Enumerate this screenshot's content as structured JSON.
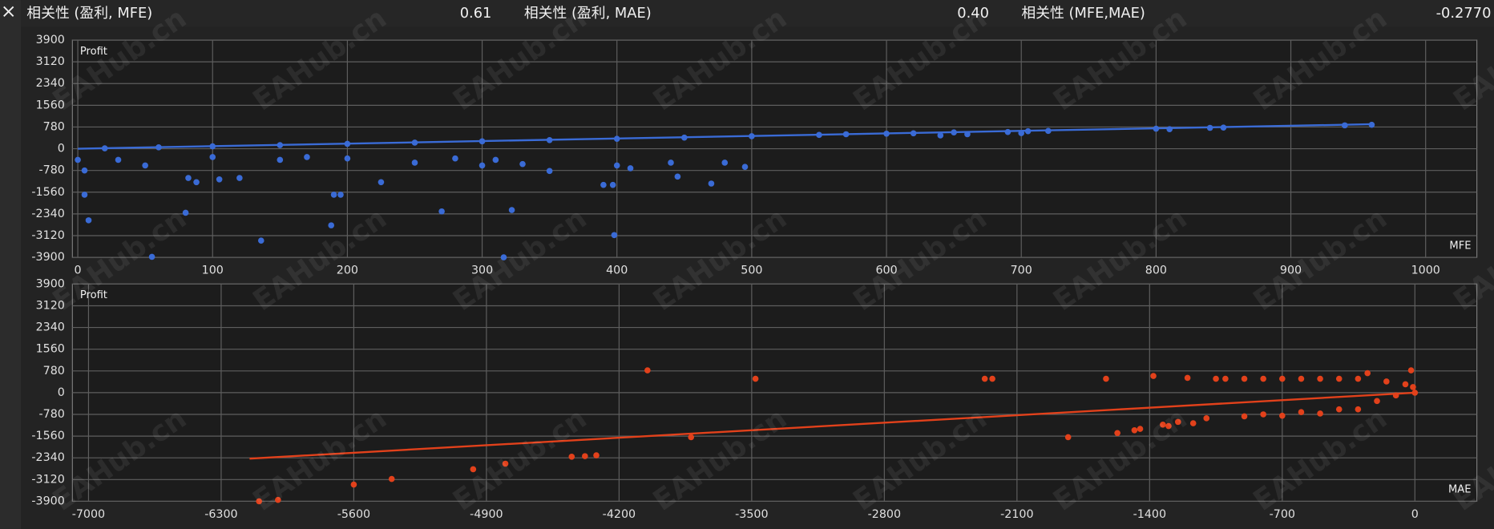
{
  "header": {
    "items": [
      {
        "label": "相关性 (盈利, MFE)",
        "value": 0.61
      },
      {
        "label": "相关性 (盈利, MAE)",
        "value": {
          "value": 0.4,
          "label": "0.40"
        }
      },
      {
        "label": "相关性 (MFE,MAE)",
        "value": {
          "value": -0.277,
          "label": "-0.2770"
        }
      }
    ]
  },
  "watermark": "EAHub.cn",
  "chart_data": [
    {
      "type": "scatter",
      "ylabel": "Profit",
      "xlabel": "MFE",
      "color": "#3a6bd6",
      "grid": true,
      "xlim": [
        -4,
        1038
      ],
      "ylim": [
        -3900,
        3900
      ],
      "xticks": [
        0,
        100,
        200,
        300,
        400,
        500,
        600,
        700,
        800,
        900,
        1000
      ],
      "yticks": [
        3900,
        3120,
        2340,
        1560,
        780,
        0,
        -780,
        -1560,
        -2340,
        -3120,
        -3900
      ],
      "x": [
        20,
        60,
        100,
        150,
        200,
        250,
        300,
        350,
        400,
        450,
        500,
        550,
        600,
        620,
        650,
        700,
        705,
        720,
        800,
        810,
        840,
        850,
        940,
        960,
        570,
        640,
        660,
        690,
        0,
        5,
        5,
        8,
        30,
        50,
        55,
        80,
        82,
        88,
        100,
        105,
        120,
        136,
        150,
        170,
        188,
        190,
        195,
        200,
        225,
        250,
        270,
        300,
        310,
        316,
        322,
        350,
        390,
        397,
        398,
        400,
        410,
        440,
        445,
        470,
        480,
        495,
        280,
        330
      ],
      "y": [
        15,
        50,
        85,
        130,
        175,
        220,
        265,
        310,
        355,
        400,
        450,
        495,
        540,
        555,
        585,
        560,
        630,
        640,
        720,
        700,
        750,
        760,
        840,
        860,
        520,
        480,
        520,
        600,
        -400,
        -780,
        -1650,
        -2570,
        -400,
        -600,
        -3880,
        -2300,
        -1050,
        -1200,
        -300,
        -1100,
        -1050,
        -3300,
        -400,
        -300,
        -2750,
        -1650,
        -1650,
        -350,
        -1200,
        -500,
        -2250,
        -600,
        -400,
        -3900,
        -2200,
        -800,
        -1300,
        -1300,
        -3100,
        -600,
        -700,
        -500,
        -1000,
        -1250,
        -500,
        -650,
        -350,
        -550
      ],
      "trend": {
        "x": [
          0,
          960
        ],
        "y": [
          0,
          880
        ]
      }
    },
    {
      "type": "scatter",
      "ylabel": "Profit",
      "xlabel": "MAE",
      "color": "#e2411b",
      "grid": true,
      "xlim": [
        -7085,
        327
      ],
      "ylim": [
        -3900,
        3900
      ],
      "xticks": [
        -7000,
        -6300,
        -5600,
        -4900,
        -4200,
        -3500,
        -2800,
        -2100,
        -1400,
        -700,
        0
      ],
      "yticks": [
        3900,
        3120,
        2340,
        1560,
        780,
        0,
        -780,
        -1560,
        -2340,
        -3120,
        -3900
      ],
      "x": [
        -6100,
        -6000,
        -5600,
        -5400,
        -4970,
        -4800,
        -4450,
        -4380,
        -4320,
        -4050,
        -3820,
        -3480,
        -2270,
        -2230,
        -1830,
        -1630,
        -1570,
        -1480,
        -1450,
        -1380,
        -1330,
        -1300,
        -1250,
        -1170,
        -1100,
        -1000,
        -900,
        -800,
        -700,
        -600,
        -500,
        -400,
        -300,
        -250,
        -300,
        -400,
        -500,
        -700,
        -900,
        -200,
        -100,
        -50,
        0,
        -20,
        -10,
        -150,
        -1200,
        -1050,
        -800,
        -600
      ],
      "y": [
        -3900,
        -3850,
        -3300,
        -3100,
        -2750,
        -2550,
        -2300,
        -2280,
        -2250,
        800,
        -1600,
        500,
        500,
        500,
        -1600,
        500,
        -1450,
        -1350,
        -1300,
        600,
        -1150,
        -1200,
        -1050,
        -1100,
        -920,
        500,
        500,
        500,
        500,
        500,
        500,
        500,
        500,
        700,
        -600,
        -600,
        -750,
        -830,
        -850,
        -300,
        -100,
        300,
        0,
        800,
        200,
        400,
        530,
        500,
        -780,
        -700
      ],
      "trend": {
        "x": [
          -6150,
          0
        ],
        "y": [
          -2370,
          0
        ]
      }
    }
  ]
}
